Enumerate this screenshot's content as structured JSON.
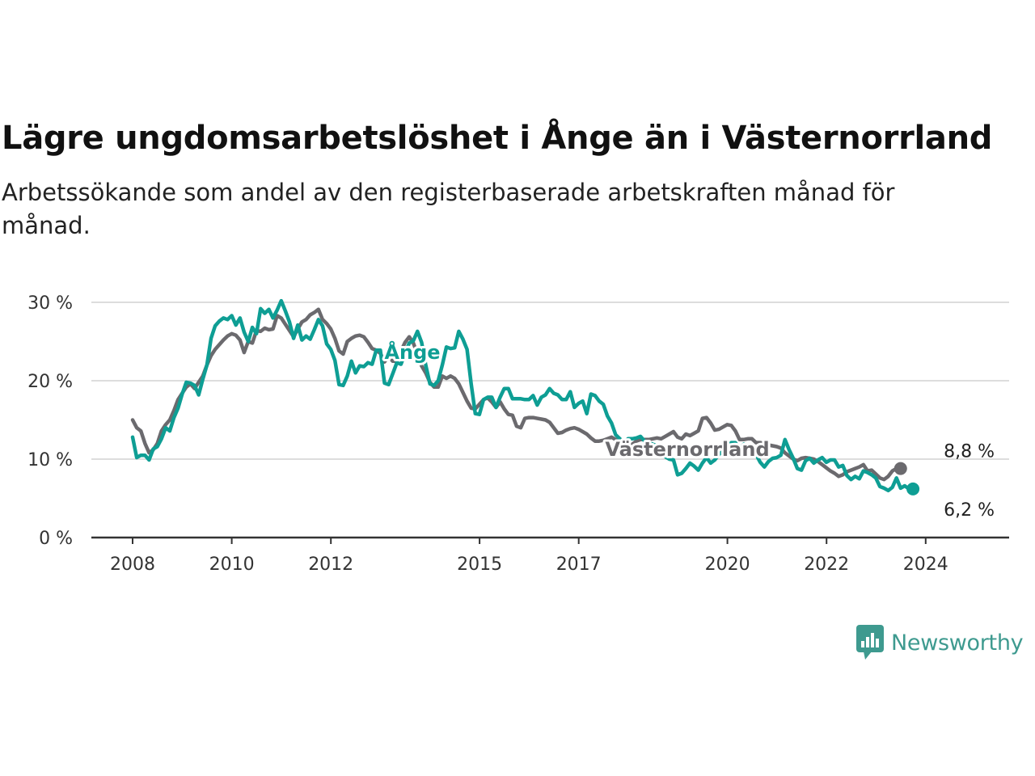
{
  "chart_data": {
    "type": "line",
    "title": "Lägre ungdomsarbetslöshet i Ånge än i Västernorrland",
    "subtitle": "Arbetssökande som andel av den registerbaserade arbetskraften månad för månad.",
    "y_ticks": [
      "0 %",
      "10 %",
      "20 %",
      "30 %"
    ],
    "ylim": [
      0,
      30
    ],
    "x_ticks": [
      "2008",
      "2010",
      "2012",
      "2015",
      "2017",
      "2020",
      "2022",
      "2024"
    ],
    "x_range": [
      2008,
      2025
    ],
    "grid": true,
    "colors": {
      "ange": "#0e9e94",
      "vasternorrland": "#6b6a6e",
      "grid": "#dddddd",
      "axis": "#333333"
    },
    "series": [
      {
        "name": "Västernorrland",
        "color": "#6b6a6e",
        "end_label": "8,8 %",
        "x_start": 2008.0,
        "step": 0.0833,
        "values": [
          15.0,
          14.0,
          13.6,
          12.0,
          10.8,
          11.2,
          12.0,
          13.6,
          14.4,
          15.0,
          16.2,
          17.6,
          18.4,
          19.2,
          19.6,
          19.0,
          19.8,
          20.6,
          22.0,
          23.2,
          24.0,
          24.6,
          25.2,
          25.7,
          26.0,
          25.8,
          25.2,
          23.6,
          25.0,
          24.8,
          26.4,
          26.3,
          26.7,
          26.5,
          26.6,
          28.3,
          28.0,
          27.2,
          26.4,
          25.6,
          26.6,
          27.5,
          27.8,
          28.4,
          28.7,
          29.1,
          27.8,
          27.3,
          26.6,
          25.4,
          23.8,
          23.4,
          25.0,
          25.4,
          25.7,
          25.8,
          25.6,
          24.9,
          24.1,
          23.9,
          23.5,
          22.4,
          23.1,
          22.5,
          22.5,
          23.8,
          24.9,
          25.6,
          24.8,
          23.4,
          21.9,
          21.0,
          19.8,
          19.2,
          19.2,
          20.6,
          20.3,
          20.6,
          20.3,
          19.6,
          18.5,
          17.4,
          16.5,
          16.4,
          17.0,
          17.6,
          17.8,
          17.3,
          16.6,
          17.3,
          16.4,
          15.7,
          15.6,
          14.2,
          14.0,
          15.2,
          15.3,
          15.3,
          15.2,
          15.1,
          15.0,
          14.7,
          14.0,
          13.3,
          13.4,
          13.7,
          13.9,
          14.0,
          13.8,
          13.5,
          13.2,
          12.7,
          12.3,
          12.3,
          12.4,
          12.6,
          12.8,
          12.5,
          12.3,
          11.8,
          11.7,
          11.9,
          12.3,
          12.5,
          12.5,
          12.5,
          12.6,
          12.7,
          12.6,
          12.9,
          13.2,
          13.5,
          12.8,
          12.6,
          13.2,
          13.0,
          13.3,
          13.6,
          15.2,
          15.3,
          14.6,
          13.7,
          13.8,
          14.1,
          14.4,
          14.3,
          13.6,
          12.5,
          12.5,
          12.6,
          12.6,
          12.1,
          12.1,
          12.0,
          11.8,
          11.7,
          11.6,
          11.4,
          10.8,
          10.4,
          10.0,
          9.8,
          10.1,
          10.2,
          10.1,
          10.0,
          9.7,
          9.3,
          8.9,
          8.5,
          8.2,
          7.8,
          8.0,
          8.4,
          8.6,
          8.8,
          9.0,
          9.3,
          8.5,
          8.6,
          8.1,
          7.6,
          7.4,
          7.8,
          8.5,
          8.8,
          8.8
        ]
      },
      {
        "name": "Ånge",
        "color": "#0e9e94",
        "end_label": "6,2 %",
        "x_start": 2008.0,
        "step": 0.0833,
        "values": [
          12.8,
          10.2,
          10.5,
          10.5,
          9.9,
          11.3,
          11.6,
          12.6,
          14.0,
          13.6,
          15.3,
          16.5,
          18.3,
          19.8,
          19.7,
          19.4,
          18.2,
          20.2,
          22.0,
          25.4,
          27.0,
          27.6,
          28.0,
          27.8,
          28.3,
          27.1,
          28.0,
          26.2,
          25.0,
          26.8,
          26.0,
          29.2,
          28.6,
          29.1,
          28.0,
          29.0,
          30.2,
          28.9,
          27.5,
          25.4,
          27.1,
          25.2,
          25.7,
          25.3,
          26.5,
          27.8,
          27.0,
          24.7,
          24.0,
          22.6,
          19.5,
          19.4,
          20.6,
          22.5,
          21.0,
          21.9,
          21.8,
          22.3,
          22.1,
          23.9,
          23.9,
          19.7,
          19.5,
          20.9,
          22.3,
          22.1,
          23.5,
          24.8,
          25.1,
          26.3,
          24.9,
          22.0,
          19.6,
          19.4,
          20.0,
          22.0,
          24.3,
          24.1,
          24.2,
          26.3,
          25.3,
          24.0,
          19.6,
          15.8,
          15.7,
          17.6,
          17.9,
          17.9,
          16.6,
          17.9,
          19.0,
          19.0,
          17.7,
          17.7,
          17.7,
          17.6,
          17.6,
          18.1,
          16.9,
          17.9,
          18.2,
          19.0,
          18.4,
          18.2,
          17.6,
          17.6,
          18.6,
          16.6,
          17.1,
          17.4,
          15.8,
          18.3,
          18.1,
          17.4,
          17.0,
          15.5,
          14.6,
          13.1,
          12.6,
          12.1,
          12.6,
          12.6,
          12.7,
          12.9,
          12.3,
          12.1,
          11.9,
          11.7,
          11.0,
          10.3,
          10.0,
          9.9,
          8.0,
          8.2,
          8.8,
          9.5,
          9.1,
          8.6,
          9.5,
          10.2,
          9.5,
          9.9,
          10.6,
          11.0,
          11.6,
          12.1,
          12.1,
          11.3,
          11.9,
          11.5,
          11.0,
          10.6,
          9.6,
          9.0,
          9.7,
          10.1,
          10.2,
          10.5,
          12.5,
          11.2,
          10.1,
          8.8,
          8.6,
          9.8,
          10.1,
          9.5,
          9.9,
          10.2,
          9.6,
          9.9,
          9.9,
          9.0,
          9.2,
          7.9,
          7.4,
          7.8,
          7.5,
          8.5,
          8.3,
          8.0,
          7.6,
          6.5,
          6.3,
          6.0,
          6.4,
          7.6,
          6.3,
          6.6,
          6.2,
          6.2
        ]
      }
    ]
  },
  "brand": {
    "name": "Newsworthy",
    "logo_icon": "bar-chart-speech-bubble-icon"
  }
}
